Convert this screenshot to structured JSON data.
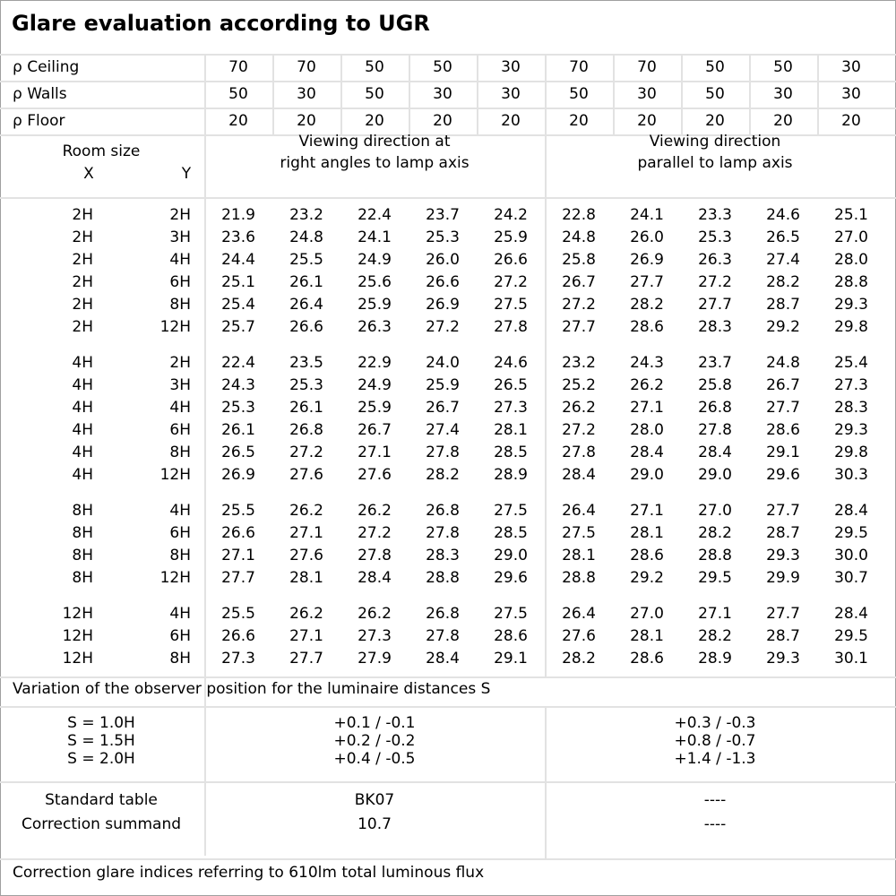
{
  "title": "Glare evaluation according to UGR",
  "reflectance": [
    {
      "label": "ρ Ceiling",
      "values": [
        "70",
        "70",
        "50",
        "50",
        "30",
        "70",
        "70",
        "50",
        "50",
        "30"
      ]
    },
    {
      "label": "ρ Walls",
      "values": [
        "50",
        "30",
        "50",
        "30",
        "30",
        "50",
        "30",
        "50",
        "30",
        "30"
      ]
    },
    {
      "label": "ρ Floor",
      "values": [
        "20",
        "20",
        "20",
        "20",
        "20",
        "20",
        "20",
        "20",
        "20",
        "20"
      ]
    }
  ],
  "header": {
    "room_size": "Room size",
    "x": "X",
    "y": "Y",
    "right_angles": [
      "Viewing direction at",
      "right angles to lamp axis"
    ],
    "parallel": [
      "Viewing direction",
      "parallel to lamp axis"
    ]
  },
  "groups": [
    {
      "rows": [
        {
          "x": "2H",
          "y": "2H",
          "v": [
            "21.9",
            "23.2",
            "22.4",
            "23.7",
            "24.2",
            "22.8",
            "24.1",
            "23.3",
            "24.6",
            "25.1"
          ]
        },
        {
          "x": "2H",
          "y": "3H",
          "v": [
            "23.6",
            "24.8",
            "24.1",
            "25.3",
            "25.9",
            "24.8",
            "26.0",
            "25.3",
            "26.5",
            "27.0"
          ]
        },
        {
          "x": "2H",
          "y": "4H",
          "v": [
            "24.4",
            "25.5",
            "24.9",
            "26.0",
            "26.6",
            "25.8",
            "26.9",
            "26.3",
            "27.4",
            "28.0"
          ]
        },
        {
          "x": "2H",
          "y": "6H",
          "v": [
            "25.1",
            "26.1",
            "25.6",
            "26.6",
            "27.2",
            "26.7",
            "27.7",
            "27.2",
            "28.2",
            "28.8"
          ]
        },
        {
          "x": "2H",
          "y": "8H",
          "v": [
            "25.4",
            "26.4",
            "25.9",
            "26.9",
            "27.5",
            "27.2",
            "28.2",
            "27.7",
            "28.7",
            "29.3"
          ]
        },
        {
          "x": "2H",
          "y": "12H",
          "v": [
            "25.7",
            "26.6",
            "26.3",
            "27.2",
            "27.8",
            "27.7",
            "28.6",
            "28.3",
            "29.2",
            "29.8"
          ]
        }
      ]
    },
    {
      "rows": [
        {
          "x": "4H",
          "y": "2H",
          "v": [
            "22.4",
            "23.5",
            "22.9",
            "24.0",
            "24.6",
            "23.2",
            "24.3",
            "23.7",
            "24.8",
            "25.4"
          ]
        },
        {
          "x": "4H",
          "y": "3H",
          "v": [
            "24.3",
            "25.3",
            "24.9",
            "25.9",
            "26.5",
            "25.2",
            "26.2",
            "25.8",
            "26.7",
            "27.3"
          ]
        },
        {
          "x": "4H",
          "y": "4H",
          "v": [
            "25.3",
            "26.1",
            "25.9",
            "26.7",
            "27.3",
            "26.2",
            "27.1",
            "26.8",
            "27.7",
            "28.3"
          ]
        },
        {
          "x": "4H",
          "y": "6H",
          "v": [
            "26.1",
            "26.8",
            "26.7",
            "27.4",
            "28.1",
            "27.2",
            "28.0",
            "27.8",
            "28.6",
            "29.3"
          ]
        },
        {
          "x": "4H",
          "y": "8H",
          "v": [
            "26.5",
            "27.2",
            "27.1",
            "27.8",
            "28.5",
            "27.8",
            "28.4",
            "28.4",
            "29.1",
            "29.8"
          ]
        },
        {
          "x": "4H",
          "y": "12H",
          "v": [
            "26.9",
            "27.6",
            "27.6",
            "28.2",
            "28.9",
            "28.4",
            "29.0",
            "29.0",
            "29.6",
            "30.3"
          ]
        }
      ]
    },
    {
      "rows": [
        {
          "x": "8H",
          "y": "4H",
          "v": [
            "25.5",
            "26.2",
            "26.2",
            "26.8",
            "27.5",
            "26.4",
            "27.1",
            "27.0",
            "27.7",
            "28.4"
          ]
        },
        {
          "x": "8H",
          "y": "6H",
          "v": [
            "26.6",
            "27.1",
            "27.2",
            "27.8",
            "28.5",
            "27.5",
            "28.1",
            "28.2",
            "28.7",
            "29.5"
          ]
        },
        {
          "x": "8H",
          "y": "8H",
          "v": [
            "27.1",
            "27.6",
            "27.8",
            "28.3",
            "29.0",
            "28.1",
            "28.6",
            "28.8",
            "29.3",
            "30.0"
          ]
        },
        {
          "x": "8H",
          "y": "12H",
          "v": [
            "27.7",
            "28.1",
            "28.4",
            "28.8",
            "29.6",
            "28.8",
            "29.2",
            "29.5",
            "29.9",
            "30.7"
          ]
        }
      ]
    },
    {
      "rows": [
        {
          "x": "12H",
          "y": "4H",
          "v": [
            "25.5",
            "26.2",
            "26.2",
            "26.8",
            "27.5",
            "26.4",
            "27.0",
            "27.1",
            "27.7",
            "28.4"
          ]
        },
        {
          "x": "12H",
          "y": "6H",
          "v": [
            "26.6",
            "27.1",
            "27.3",
            "27.8",
            "28.6",
            "27.6",
            "28.1",
            "28.2",
            "28.7",
            "29.5"
          ]
        },
        {
          "x": "12H",
          "y": "8H",
          "v": [
            "27.3",
            "27.7",
            "27.9",
            "28.4",
            "29.1",
            "28.2",
            "28.6",
            "28.9",
            "29.3",
            "30.1"
          ]
        }
      ]
    }
  ],
  "variation": {
    "label": "Variation of the observer position for the luminaire distances S",
    "rows": [
      {
        "s": "S = 1.0H",
        "right": "+0.1 / -0.1",
        "parallel": "+0.3 / -0.3"
      },
      {
        "s": "S = 1.5H",
        "right": "+0.2 / -0.2",
        "parallel": "+0.8 / -0.7"
      },
      {
        "s": "S = 2.0H",
        "right": "+0.4 / -0.5",
        "parallel": "+1.4 / -1.3"
      }
    ]
  },
  "standard": {
    "standard_table_label": "Standard table",
    "standard_table_right": "BK07",
    "standard_table_parallel": "----",
    "correction_label": "Correction summand",
    "correction_right": "10.7",
    "correction_parallel": "----"
  },
  "footer": "Correction glare indices referring to 610lm total luminous flux"
}
